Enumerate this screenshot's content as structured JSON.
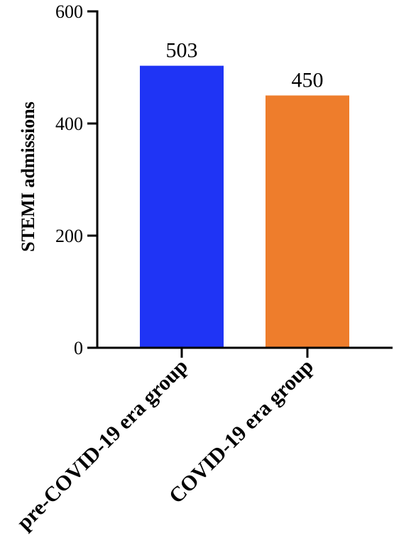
{
  "chart_data": {
    "type": "bar",
    "title": "",
    "xlabel": "",
    "ylabel": "STEMI admissions",
    "ylim": [
      0,
      600
    ],
    "yticks": [
      0,
      200,
      400,
      600
    ],
    "categories": [
      "pre-COVID-19 era group",
      "COVID-19 era group"
    ],
    "values": [
      503,
      450
    ],
    "data_labels": [
      "503",
      "450"
    ],
    "colors": [
      "#1f34f5",
      "#ee7d2c"
    ],
    "grid": false,
    "legend": "none"
  }
}
